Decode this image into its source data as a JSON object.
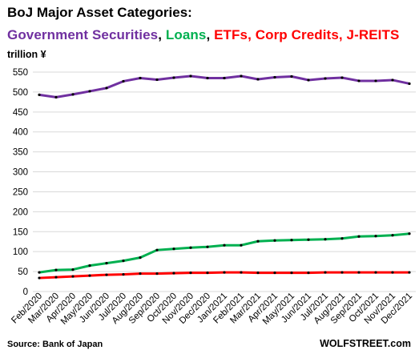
{
  "title": "BoJ Major Asset Categories:",
  "subtitle_parts": [
    {
      "text": "Government Securities",
      "color": "#7030a0"
    },
    {
      "text": ", ",
      "color": "#000000"
    },
    {
      "text": "Loans",
      "color": "#00b050"
    },
    {
      "text": ", ",
      "color": "#000000"
    },
    {
      "text": "ETFs, Corp Credits, J-REITS",
      "color": "#ff0000"
    }
  ],
  "unit_label": "trillion ¥",
  "source": "Source: Bank of Japan",
  "brand": "WOLFSTREET.com",
  "chart_data": {
    "type": "line",
    "title": "BoJ Major Asset Categories:",
    "ylabel": "trillion ¥",
    "xlabel": "",
    "ylim": [
      0,
      550
    ],
    "yticks": [
      0,
      50,
      100,
      150,
      200,
      250,
      300,
      350,
      400,
      450,
      500,
      550
    ],
    "grid": true,
    "x": [
      "Feb/2020",
      "Mar/2020",
      "Apr/2020",
      "May/2020",
      "Jun/2020",
      "Jul/2020",
      "Aug/2020",
      "Sep/2020",
      "Oct/2020",
      "Nov/2020",
      "Dec/2020",
      "Jan/2021",
      "Feb/2021",
      "Mar/2021",
      "Apr/2021",
      "May/2021",
      "Jun/2021",
      "Jul/2021",
      "Aug/2021",
      "Sep/2021",
      "Oct/2021",
      "Nov/2021",
      "Dec/2021"
    ],
    "series": [
      {
        "name": "Government Securities",
        "color": "#7030a0",
        "values": [
          493,
          487,
          494,
          502,
          510,
          527,
          535,
          531,
          536,
          540,
          535,
          535,
          540,
          532,
          537,
          539,
          530,
          534,
          536,
          528,
          528,
          530,
          521
        ]
      },
      {
        "name": "Loans",
        "color": "#00b050",
        "values": [
          48,
          54,
          55,
          65,
          71,
          77,
          85,
          104,
          107,
          110,
          112,
          116,
          116,
          126,
          128,
          129,
          130,
          131,
          133,
          138,
          139,
          141,
          145
        ]
      },
      {
        "name": "ETFs, Corp Credits, J-REITS",
        "color": "#ff0000",
        "values": [
          34,
          36,
          38,
          40,
          42,
          43,
          45,
          45,
          46,
          47,
          47,
          48,
          48,
          47,
          47,
          47,
          47,
          48,
          48,
          48,
          48,
          48,
          48
        ]
      }
    ]
  }
}
